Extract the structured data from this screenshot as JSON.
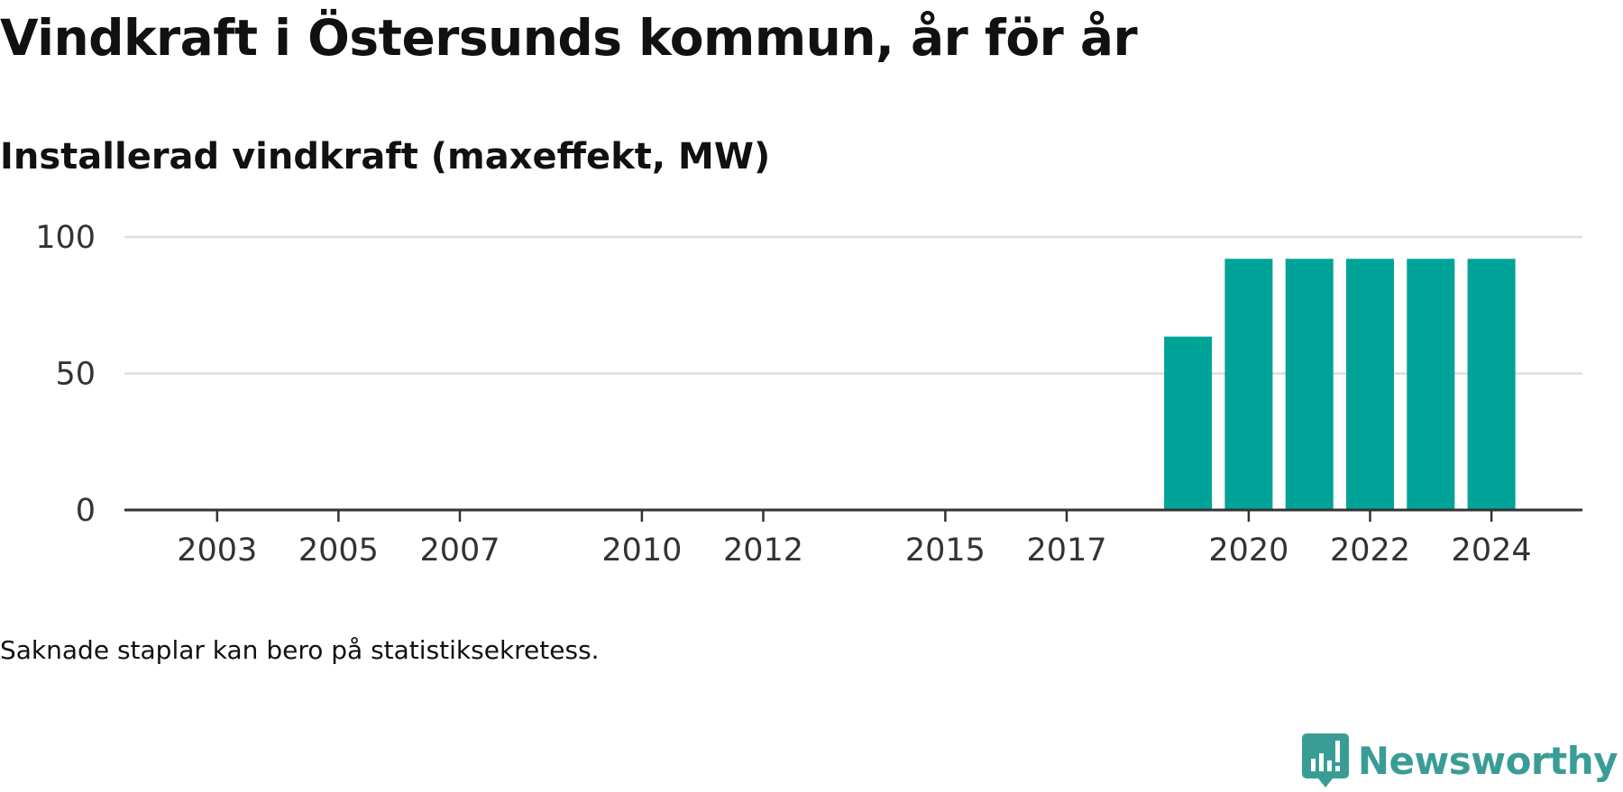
{
  "header": {
    "title": "Vindkraft i Östersunds kommun, år för år",
    "subtitle": "Installerad vindkraft (maxeffekt, MW)"
  },
  "footer": {
    "note": "Saknade staplar kan bero på statistiksekretess.",
    "brand": "Newsworthy",
    "brand_icon": "newsworthy-logo-icon"
  },
  "colors": {
    "bar": "#00a398",
    "grid": "#dddddd",
    "axis": "#333333",
    "text": "#111111",
    "tick_text": "#333333",
    "brand": "#3a9d95"
  },
  "chart_data": {
    "type": "bar",
    "categories": [
      2002,
      2003,
      2004,
      2005,
      2006,
      2007,
      2008,
      2009,
      2010,
      2011,
      2012,
      2013,
      2014,
      2015,
      2016,
      2017,
      2018,
      2019,
      2020,
      2021,
      2022,
      2023,
      2024
    ],
    "values": [
      null,
      null,
      null,
      null,
      null,
      null,
      null,
      null,
      null,
      null,
      null,
      null,
      null,
      null,
      null,
      null,
      null,
      63.5,
      92,
      92,
      92,
      92,
      92
    ],
    "x_tick_labels": [
      "2003",
      "2005",
      "2007",
      "2010",
      "2012",
      "2015",
      "2017",
      "2020",
      "2022",
      "2024"
    ],
    "y_ticks": [
      0,
      50,
      100
    ],
    "ylim": [
      0,
      100
    ],
    "title": "Vindkraft i Östersunds kommun, år för år",
    "subtitle": "Installerad vindkraft (maxeffekt, MW)",
    "xlabel": "",
    "ylabel": "",
    "grid": true,
    "legend": "none"
  }
}
